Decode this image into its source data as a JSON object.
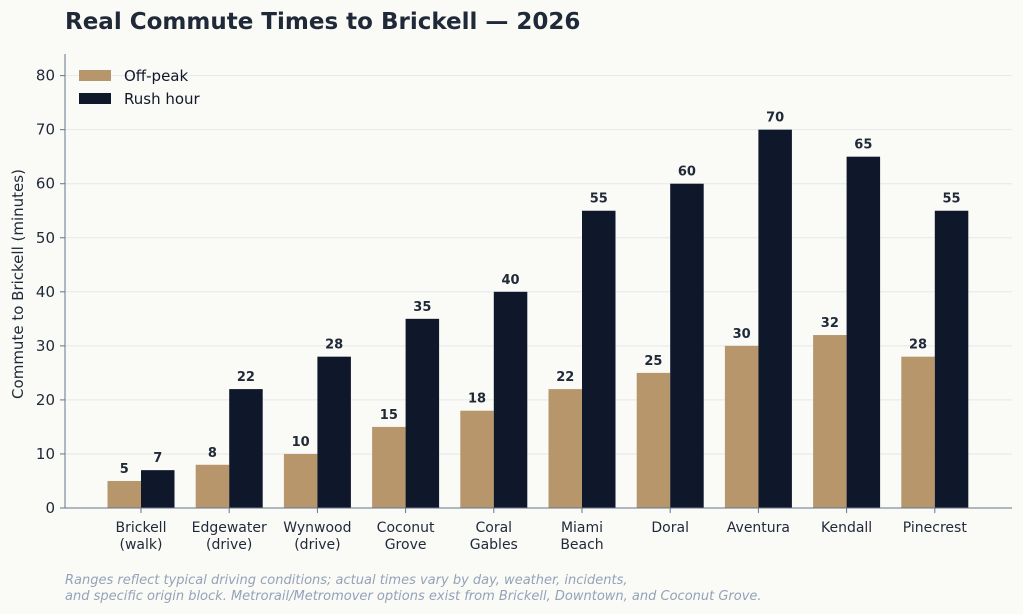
{
  "chart_data": {
    "type": "bar",
    "title": "Real Commute Times to Brickell — 2026",
    "xlabel": "",
    "ylabel": "Commute to Brickell (minutes)",
    "ylim": [
      0,
      84
    ],
    "yticks": [
      0,
      10,
      20,
      30,
      40,
      50,
      60,
      70,
      80
    ],
    "grid": true,
    "legend_position": "top-left",
    "categories": [
      [
        "Brickell",
        "(walk)"
      ],
      [
        "Edgewater",
        "(drive)"
      ],
      [
        "Wynwood",
        "(drive)"
      ],
      [
        "Coconut",
        "Grove"
      ],
      [
        "Coral",
        "Gables"
      ],
      [
        "Miami",
        "Beach"
      ],
      [
        "Doral"
      ],
      [
        "Aventura"
      ],
      [
        "Kendall"
      ],
      [
        "Pinecrest"
      ]
    ],
    "series": [
      {
        "name": "Off-peak",
        "color": "#b8966c",
        "values": [
          5,
          8,
          10,
          15,
          18,
          22,
          25,
          30,
          32,
          28
        ]
      },
      {
        "name": "Rush hour",
        "color": "#0f172a",
        "values": [
          7,
          22,
          28,
          35,
          40,
          55,
          60,
          70,
          65,
          55
        ]
      }
    ],
    "footnote": [
      "Ranges reflect typical driving conditions; actual times vary by day, weather, incidents,",
      "and specific origin block. Metrorail/Metromover options exist from Brickell, Downtown, and Coconut Grove."
    ]
  }
}
